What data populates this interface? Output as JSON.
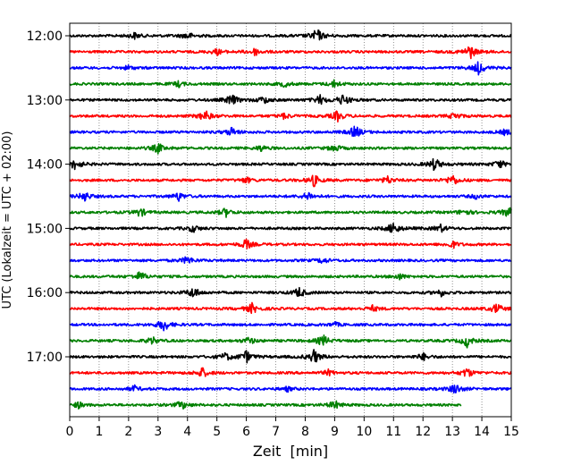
{
  "chart_data": {
    "type": "line",
    "title": "",
    "xlabel": "Zeit  [min]",
    "ylabel": "UTC (Lokalzeit = UTC + 02:00)",
    "xlim": [
      0,
      15
    ],
    "x_ticks": [
      0,
      1,
      2,
      3,
      4,
      5,
      6,
      7,
      8,
      9,
      10,
      11,
      12,
      13,
      14,
      15
    ],
    "y_tick_labels": [
      "12:00",
      "13:00",
      "14:00",
      "15:00",
      "16:00",
      "17:00"
    ],
    "grid": "vertical dotted at each minute",
    "trace_colors": [
      "#000000",
      "#ff0000",
      "#0000ff",
      "#008000"
    ],
    "traces": [
      {
        "start": "12:00",
        "color": "black",
        "end_min": 15,
        "spikes": [
          [
            8.4,
            1.0
          ],
          [
            4.0,
            0.5
          ],
          [
            2.2,
            0.4
          ]
        ]
      },
      {
        "start": "12:15",
        "color": "red",
        "end_min": 15,
        "spikes": [
          [
            13.6,
            1.0
          ],
          [
            6.3,
            0.5
          ],
          [
            5.0,
            0.4
          ]
        ]
      },
      {
        "start": "12:30",
        "color": "blue",
        "end_min": 15,
        "spikes": [
          [
            13.9,
            0.9
          ],
          [
            2.0,
            0.3
          ]
        ]
      },
      {
        "start": "12:45",
        "color": "green",
        "end_min": 15,
        "spikes": [
          [
            9.0,
            0.5
          ],
          [
            7.3,
            0.4
          ],
          [
            3.7,
            0.4
          ]
        ]
      },
      {
        "start": "13:00",
        "color": "black",
        "end_min": 15,
        "spikes": [
          [
            9.3,
            0.8
          ],
          [
            8.5,
            0.6
          ],
          [
            5.5,
            0.8
          ],
          [
            6.6,
            0.5
          ]
        ]
      },
      {
        "start": "13:15",
        "color": "red",
        "end_min": 15,
        "spikes": [
          [
            4.6,
            0.8
          ],
          [
            9.1,
            0.7
          ],
          [
            13.1,
            0.5
          ],
          [
            7.3,
            0.4
          ]
        ]
      },
      {
        "start": "13:30",
        "color": "blue",
        "end_min": 15,
        "spikes": [
          [
            9.7,
            0.9
          ],
          [
            5.5,
            0.6
          ],
          [
            14.8,
            0.4
          ]
        ]
      },
      {
        "start": "13:45",
        "color": "green",
        "end_min": 15,
        "spikes": [
          [
            3.0,
            0.7
          ],
          [
            9.0,
            0.5
          ],
          [
            6.5,
            0.4
          ]
        ]
      },
      {
        "start": "14:00",
        "color": "black",
        "end_min": 15,
        "spikes": [
          [
            0.2,
            0.8
          ],
          [
            12.4,
            0.9
          ],
          [
            14.6,
            0.6
          ]
        ]
      },
      {
        "start": "14:15",
        "color": "red",
        "end_min": 15,
        "spikes": [
          [
            8.3,
            0.8
          ],
          [
            13.0,
            0.8
          ],
          [
            10.8,
            0.5
          ],
          [
            6.0,
            0.4
          ]
        ]
      },
      {
        "start": "14:30",
        "color": "blue",
        "end_min": 15,
        "spikes": [
          [
            0.5,
            0.7
          ],
          [
            3.7,
            0.6
          ],
          [
            8.1,
            0.6
          ],
          [
            13.8,
            0.3
          ]
        ]
      },
      {
        "start": "14:45",
        "color": "green",
        "end_min": 15,
        "spikes": [
          [
            5.3,
            0.6
          ],
          [
            14.9,
            0.7
          ],
          [
            2.4,
            0.6
          ],
          [
            13.4,
            0.5
          ]
        ]
      },
      {
        "start": "15:00",
        "color": "black",
        "end_min": 15,
        "spikes": [
          [
            11.0,
            0.9
          ],
          [
            4.2,
            0.5
          ],
          [
            12.6,
            0.5
          ]
        ]
      },
      {
        "start": "15:15",
        "color": "red",
        "end_min": 15,
        "spikes": [
          [
            6.0,
            0.7
          ],
          [
            13.0,
            0.5
          ]
        ]
      },
      {
        "start": "15:30",
        "color": "blue",
        "end_min": 15,
        "spikes": [
          [
            4.0,
            0.6
          ],
          [
            8.6,
            0.4
          ]
        ]
      },
      {
        "start": "15:45",
        "color": "green",
        "end_min": 15,
        "spikes": [
          [
            2.4,
            0.7
          ],
          [
            11.2,
            0.4
          ]
        ]
      },
      {
        "start": "16:00",
        "color": "black",
        "end_min": 15,
        "spikes": [
          [
            4.2,
            0.8
          ],
          [
            7.8,
            0.7
          ],
          [
            12.6,
            0.5
          ]
        ]
      },
      {
        "start": "16:15",
        "color": "red",
        "end_min": 15,
        "spikes": [
          [
            6.2,
            0.7
          ],
          [
            10.3,
            0.4
          ],
          [
            14.5,
            0.7
          ]
        ]
      },
      {
        "start": "16:30",
        "color": "blue",
        "end_min": 15,
        "spikes": [
          [
            3.2,
            0.9
          ],
          [
            9.0,
            0.3
          ]
        ]
      },
      {
        "start": "16:45",
        "color": "green",
        "end_min": 15,
        "spikes": [
          [
            8.6,
            0.8
          ],
          [
            13.5,
            0.8
          ],
          [
            2.8,
            0.5
          ],
          [
            6.1,
            0.5
          ]
        ]
      },
      {
        "start": "17:00",
        "color": "black",
        "end_min": 15,
        "spikes": [
          [
            8.3,
            1.0
          ],
          [
            6.0,
            0.8
          ],
          [
            12.0,
            0.5
          ],
          [
            5.3,
            0.5
          ]
        ]
      },
      {
        "start": "17:15",
        "color": "red",
        "end_min": 15,
        "spikes": [
          [
            4.5,
            0.7
          ],
          [
            13.5,
            0.7
          ],
          [
            8.8,
            0.4
          ]
        ]
      },
      {
        "start": "17:30",
        "color": "blue",
        "end_min": 15,
        "spikes": [
          [
            13.1,
            0.8
          ],
          [
            2.2,
            0.4
          ],
          [
            7.4,
            0.3
          ]
        ]
      },
      {
        "start": "17:45",
        "color": "green",
        "end_min": 13.3,
        "spikes": [
          [
            3.8,
            0.6
          ],
          [
            9.0,
            0.6
          ],
          [
            0.3,
            0.4
          ]
        ]
      }
    ]
  }
}
